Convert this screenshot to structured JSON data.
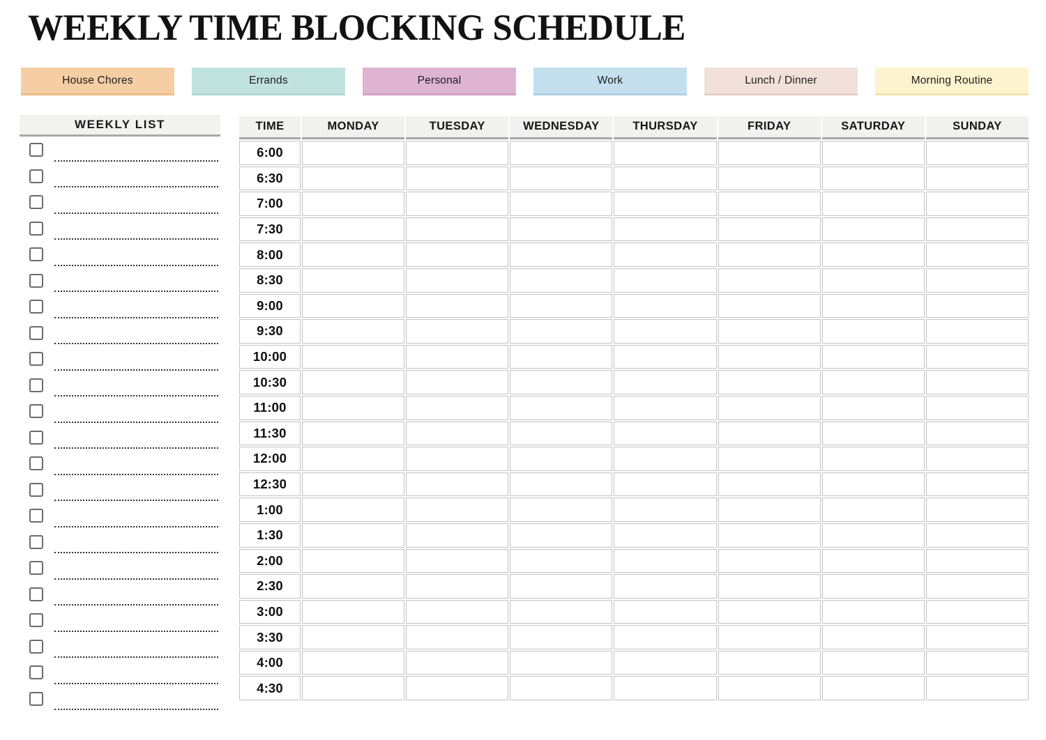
{
  "title": "WEEKLY TIME BLOCKING SCHEDULE",
  "legend": {
    "items": [
      {
        "label": "House Chores",
        "color": "#F5CEA3",
        "edge": "#ECBD8B"
      },
      {
        "label": "Errands",
        "color": "#C1E3E0",
        "edge": "#ADD7D3"
      },
      {
        "label": "Personal",
        "color": "#DFB4D2",
        "edge": "#D1A0C3"
      },
      {
        "label": "Work",
        "color": "#C4E0EF",
        "edge": "#AECFE2"
      },
      {
        "label": "Lunch / Dinner",
        "color": "#F1E1DA",
        "edge": "#E3CDC3"
      },
      {
        "label": "Morning Routine",
        "color": "#FDF3CF",
        "edge": "#F1E3AF"
      }
    ]
  },
  "weekly_list": {
    "header": "WEEKLY LIST",
    "items": [
      {
        "text": "",
        "checked": false
      },
      {
        "text": "",
        "checked": false
      },
      {
        "text": "",
        "checked": false
      },
      {
        "text": "",
        "checked": false
      },
      {
        "text": "",
        "checked": false
      },
      {
        "text": "",
        "checked": false
      },
      {
        "text": "",
        "checked": false
      },
      {
        "text": "",
        "checked": false
      },
      {
        "text": "",
        "checked": false
      },
      {
        "text": "",
        "checked": false
      },
      {
        "text": "",
        "checked": false
      },
      {
        "text": "",
        "checked": false
      },
      {
        "text": "",
        "checked": false
      },
      {
        "text": "",
        "checked": false
      },
      {
        "text": "",
        "checked": false
      },
      {
        "text": "",
        "checked": false
      },
      {
        "text": "",
        "checked": false
      },
      {
        "text": "",
        "checked": false
      },
      {
        "text": "",
        "checked": false
      },
      {
        "text": "",
        "checked": false
      },
      {
        "text": "",
        "checked": false
      },
      {
        "text": "",
        "checked": false
      }
    ]
  },
  "schedule": {
    "columns": [
      "TIME",
      "MONDAY",
      "TUESDAY",
      "WEDNESDAY",
      "THURSDAY",
      "FRIDAY",
      "SATURDAY",
      "SUNDAY"
    ],
    "times": [
      "6:00",
      "6:30",
      "7:00",
      "7:30",
      "8:00",
      "8:30",
      "9:00",
      "9:30",
      "10:00",
      "10:30",
      "11:00",
      "11:30",
      "12:00",
      "12:30",
      "1:00",
      "1:30",
      "2:00",
      "2:30",
      "3:00",
      "3:30",
      "4:00",
      "4:30"
    ],
    "cell_value": ""
  }
}
